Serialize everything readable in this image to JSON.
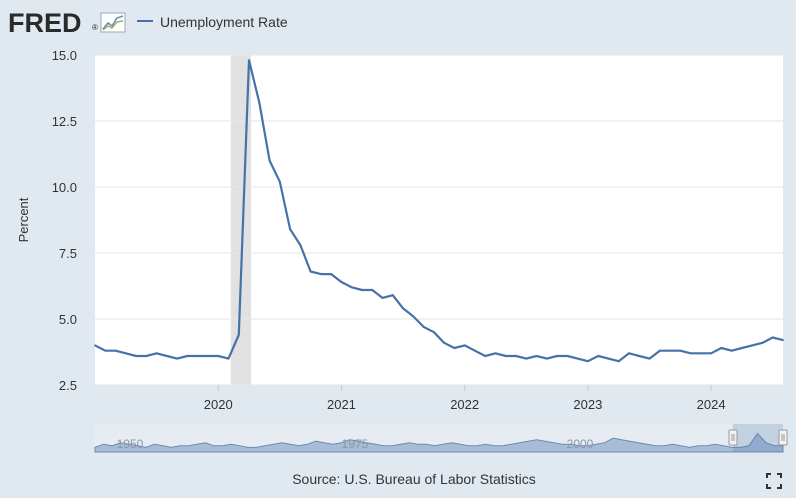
{
  "brand": {
    "text": "FRED",
    "mark": "®",
    "logo_icon": "chart-line-icon"
  },
  "colors": {
    "background": "#e1e9f0",
    "plot_background": "#ffffff",
    "series_line": "#4572a7",
    "recession_band": "#e1e1e1",
    "grid": "#e6e6e6",
    "brand_text": "#2a2a2a",
    "navigator_fill": "#a8bcd6",
    "navigator_line": "#6d8bb5"
  },
  "chart_data": {
    "type": "line",
    "title": "",
    "xlabel": "",
    "ylabel": "Percent",
    "ylim": [
      2.5,
      15.0
    ],
    "yticks": [
      2.5,
      5.0,
      7.5,
      10.0,
      12.5,
      15.0
    ],
    "ytick_labels": [
      "2.5",
      "5.0",
      "7.5",
      "10.0",
      "12.5",
      "15.0"
    ],
    "x_range": [
      "2019-01",
      "2024-08"
    ],
    "xticks": [
      "2020",
      "2021",
      "2022",
      "2023",
      "2024"
    ],
    "legend": {
      "position": "top-left"
    },
    "grid": true,
    "recession": {
      "start": "2020-03",
      "end": "2020-04"
    },
    "series": [
      {
        "name": "Unemployment Rate",
        "x": [
          "2019-01",
          "2019-02",
          "2019-03",
          "2019-04",
          "2019-05",
          "2019-06",
          "2019-07",
          "2019-08",
          "2019-09",
          "2019-10",
          "2019-11",
          "2019-12",
          "2020-01",
          "2020-02",
          "2020-03",
          "2020-04",
          "2020-05",
          "2020-06",
          "2020-07",
          "2020-08",
          "2020-09",
          "2020-10",
          "2020-11",
          "2020-12",
          "2021-01",
          "2021-02",
          "2021-03",
          "2021-04",
          "2021-05",
          "2021-06",
          "2021-07",
          "2021-08",
          "2021-09",
          "2021-10",
          "2021-11",
          "2021-12",
          "2022-01",
          "2022-02",
          "2022-03",
          "2022-04",
          "2022-05",
          "2022-06",
          "2022-07",
          "2022-08",
          "2022-09",
          "2022-10",
          "2022-11",
          "2022-12",
          "2023-01",
          "2023-02",
          "2023-03",
          "2023-04",
          "2023-05",
          "2023-06",
          "2023-07",
          "2023-08",
          "2023-09",
          "2023-10",
          "2023-11",
          "2023-12",
          "2024-01",
          "2024-02",
          "2024-03",
          "2024-04",
          "2024-05",
          "2024-06",
          "2024-07",
          "2024-08"
        ],
        "values": [
          4.0,
          3.8,
          3.8,
          3.7,
          3.6,
          3.6,
          3.7,
          3.6,
          3.5,
          3.6,
          3.6,
          3.6,
          3.6,
          3.5,
          4.4,
          14.8,
          13.2,
          11.0,
          10.2,
          8.4,
          7.8,
          6.8,
          6.7,
          6.7,
          6.4,
          6.2,
          6.1,
          6.1,
          5.8,
          5.9,
          5.4,
          5.1,
          4.7,
          4.5,
          4.1,
          3.9,
          4.0,
          3.8,
          3.6,
          3.7,
          3.6,
          3.6,
          3.5,
          3.6,
          3.5,
          3.6,
          3.6,
          3.5,
          3.4,
          3.6,
          3.5,
          3.4,
          3.7,
          3.6,
          3.5,
          3.8,
          3.8,
          3.8,
          3.7,
          3.7,
          3.7,
          3.9,
          3.8,
          3.9,
          4.0,
          4.1,
          4.3,
          4.2
        ]
      }
    ],
    "navigator": {
      "labels": [
        "1950",
        "1975",
        "2000"
      ]
    }
  },
  "footer": {
    "source": "Source: U.S. Bureau of Labor Statistics",
    "fullscreen_icon": "fullscreen-icon"
  }
}
